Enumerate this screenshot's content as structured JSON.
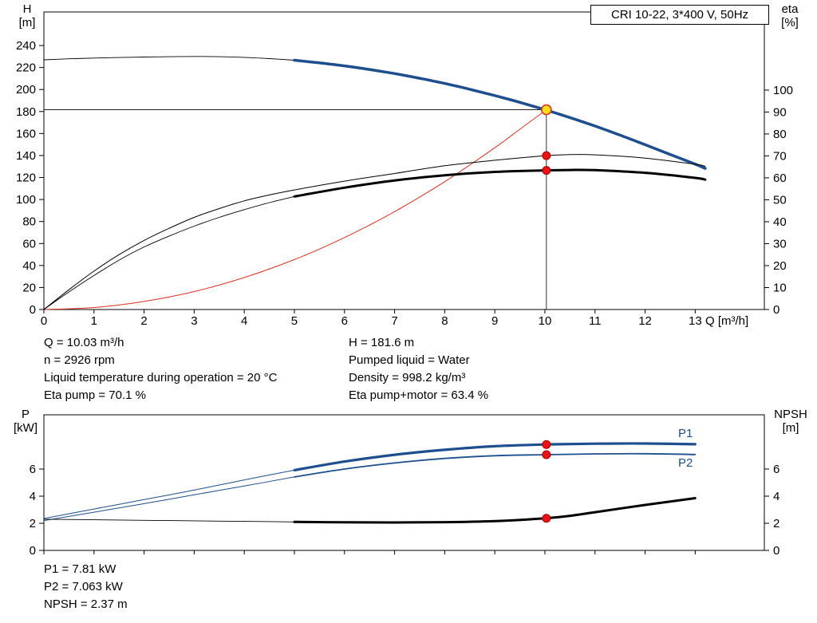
{
  "title_box": "CRI 10-22, 3*400 V, 50Hz",
  "axis_labels": {
    "top_left": [
      "H",
      "[m]"
    ],
    "top_right": [
      "eta",
      "[%]"
    ],
    "bottom_left": [
      "P",
      "[kW]"
    ],
    "bottom_right": [
      "NPSH",
      "[m]"
    ],
    "x": "Q [m³/h]"
  },
  "curve_labels": {
    "p1": "P1",
    "p2": "P2"
  },
  "info_top": {
    "left": [
      "Q = 10.03 m³/h",
      "n = 2926 rpm",
      "Liquid temperature during operation = 20 °C",
      "Eta pump = 70.1 %"
    ],
    "right": [
      "H = 181.6 m",
      "Pumped liquid = Water",
      "Density = 998.2 kg/m³",
      "Eta pump+motor = 63.4 %"
    ]
  },
  "info_bottom": [
    "P1 = 7.81 kW",
    "P2 = 7.063 kW",
    "NPSH = 2.37 m"
  ],
  "colors": {
    "curve_blue": "#1d4e8f",
    "curve_red": "#e0301e",
    "dot_red": "#ee1111",
    "dot_yellow": "#ffe11a",
    "black": "#000000"
  },
  "operating_point": {
    "q_m3h": 10.03,
    "h_m": 181.6,
    "n_rpm": 2926,
    "eta_pump_pct": 70.1,
    "eta_pump_motor_pct": 63.4,
    "p1_kw": 7.81,
    "p2_kw": 7.063,
    "npsh_m": 2.37,
    "liquid": "Water",
    "temperature_c": 20,
    "density_kg_m3": 998.2
  },
  "chart_data": [
    {
      "type": "line",
      "title": "CRI 10-22, 3*400 V, 50Hz",
      "xlabel": "Q [m³/h]",
      "xlim": [
        0,
        14.38
      ],
      "x_ticks": [
        0,
        1,
        2,
        3,
        4,
        5,
        6,
        7,
        8,
        9,
        10,
        11,
        12,
        13
      ],
      "show_x_labels": true,
      "left_axis": {
        "label": "H [m]",
        "lim": [
          0,
          270.5
        ],
        "ticks": [
          0,
          20,
          40,
          60,
          80,
          100,
          120,
          140,
          160,
          180,
          200,
          220,
          240
        ]
      },
      "right_axis": {
        "label": "eta [%]",
        "lim": [
          0,
          135.6
        ],
        "ticks": [
          0,
          10,
          20,
          30,
          40,
          50,
          60,
          70,
          80,
          90,
          100
        ]
      },
      "crosshair": {
        "q": 10.03,
        "h": 181.6
      },
      "series": [
        {
          "name": "pump-curve-low-range",
          "axis": "left",
          "color": "#000000",
          "width": 0.9,
          "points": [
            [
              0,
              227
            ],
            [
              0.5,
              227.9
            ],
            [
              1,
              228.6
            ],
            [
              1.5,
              229.1
            ],
            [
              2,
              229.5
            ],
            [
              2.5,
              229.8
            ],
            [
              3,
              230
            ],
            [
              3.5,
              229.8
            ],
            [
              4,
              229.2
            ],
            [
              4.5,
              228.1
            ],
            [
              5,
              226.6
            ]
          ]
        },
        {
          "name": "pump-curve-main",
          "axis": "left",
          "color": "#1d4e8f",
          "width": 3.5,
          "points": [
            [
              5,
              226.6
            ],
            [
              5.5,
              224.2
            ],
            [
              6,
              221.5
            ],
            [
              6.5,
              218.2
            ],
            [
              7,
              214.5
            ],
            [
              7.5,
              210.2
            ],
            [
              8,
              205.5
            ],
            [
              8.5,
              200.2
            ],
            [
              9,
              194.5
            ],
            [
              9.5,
              188.3
            ],
            [
              10,
              181.7
            ],
            [
              10.5,
              174.5
            ],
            [
              11,
              166.8
            ],
            [
              11.5,
              158.5
            ],
            [
              12,
              149.8
            ],
            [
              12.5,
              141
            ],
            [
              13,
              132.2
            ],
            [
              13.2,
              128.3
            ]
          ]
        },
        {
          "name": "system-curve",
          "axis": "left",
          "color": "#e0301e",
          "width": 1,
          "points": [
            [
              0,
              0
            ],
            [
              1,
              1.8
            ],
            [
              2,
              7.3
            ],
            [
              3,
              16.3
            ],
            [
              4,
              29.1
            ],
            [
              5,
              45.4
            ],
            [
              6,
              65.4
            ],
            [
              7,
              89
            ],
            [
              8,
              116.2
            ],
            [
              9,
              147.1
            ],
            [
              9.5,
              163.9
            ],
            [
              10.03,
              181.6
            ]
          ]
        },
        {
          "name": "eta-pump-curve",
          "axis": "right",
          "color": "#000000",
          "width": 1,
          "points": [
            [
              0,
              0
            ],
            [
              0.5,
              9
            ],
            [
              1,
              17.5
            ],
            [
              1.5,
              25
            ],
            [
              2,
              31.5
            ],
            [
              2.5,
              37
            ],
            [
              3,
              42
            ],
            [
              3.5,
              46
            ],
            [
              4,
              49.5
            ],
            [
              4.5,
              52.2
            ],
            [
              5,
              54.5
            ],
            [
              6,
              58.5
            ],
            [
              7,
              62
            ],
            [
              8,
              65.5
            ],
            [
              9,
              68
            ],
            [
              10,
              70.1
            ],
            [
              10.5,
              70.6
            ],
            [
              11,
              70.5
            ],
            [
              12,
              69
            ],
            [
              13,
              66.2
            ],
            [
              13.2,
              65.3
            ]
          ]
        },
        {
          "name": "eta-pump-motor-low-range",
          "axis": "right",
          "color": "#000000",
          "width": 0.9,
          "points": [
            [
              0,
              0
            ],
            [
              0.5,
              8
            ],
            [
              1,
              15.5
            ],
            [
              1.5,
              22.5
            ],
            [
              2,
              28.5
            ],
            [
              2.5,
              33.5
            ],
            [
              3,
              38
            ],
            [
              3.5,
              42
            ],
            [
              4,
              45.5
            ],
            [
              4.5,
              48.7
            ],
            [
              5,
              51.5
            ]
          ]
        },
        {
          "name": "eta-pump-motor-curve",
          "axis": "right",
          "color": "#000000",
          "width": 3,
          "points": [
            [
              5,
              51.5
            ],
            [
              6,
              55.5
            ],
            [
              7,
              58.8
            ],
            [
              8,
              61.2
            ],
            [
              9,
              62.7
            ],
            [
              10,
              63.4
            ],
            [
              10.5,
              63.6
            ],
            [
              11,
              63.5
            ],
            [
              12,
              62.3
            ],
            [
              13,
              60
            ],
            [
              13.2,
              59.2
            ]
          ]
        }
      ],
      "points": [
        {
          "name": "duty-point",
          "axis": "left",
          "x": 10.03,
          "y": 181.6,
          "r": 6,
          "fill": "#ffe11a",
          "stroke": "#e0301e",
          "stroke_width": 1.6,
          "interactable": true
        },
        {
          "name": "eta-pump-point",
          "axis": "right",
          "x": 10.03,
          "y": 70.1,
          "r": 5,
          "fill": "#ee1111",
          "stroke": "#aa0000",
          "stroke_width": 1
        },
        {
          "name": "eta-pump-motor-point",
          "axis": "right",
          "x": 10.03,
          "y": 63.4,
          "r": 5,
          "fill": "#ee1111",
          "stroke": "#aa0000",
          "stroke_width": 1
        }
      ]
    },
    {
      "type": "line",
      "xlim": [
        0,
        14.38
      ],
      "x_ticks": [
        0,
        1,
        2,
        3,
        4,
        5,
        6,
        7,
        8,
        9,
        10,
        11,
        12,
        13
      ],
      "show_x_labels": false,
      "left_axis": {
        "label": "P [kW]",
        "lim": [
          0,
          10
        ],
        "ticks": [
          0,
          2,
          4,
          6
        ]
      },
      "right_axis": {
        "label": "NPSH [m]",
        "lim": [
          0,
          10
        ],
        "ticks": [
          0,
          2,
          4,
          6
        ]
      },
      "series": [
        {
          "name": "p2-curve-low-range",
          "axis": "left",
          "color": "#1d4e8f",
          "width": 1,
          "points": [
            [
              0,
              2.2
            ],
            [
              1,
              2.82
            ],
            [
              2,
              3.45
            ],
            [
              3,
              4.1
            ],
            [
              4,
              4.75
            ],
            [
              5,
              5.42
            ]
          ]
        },
        {
          "name": "p2-curve",
          "axis": "left",
          "color": "#1d4e8f",
          "width": 1.8,
          "points": [
            [
              5,
              5.42
            ],
            [
              6,
              6.0
            ],
            [
              7,
              6.45
            ],
            [
              8,
              6.78
            ],
            [
              9,
              6.98
            ],
            [
              10,
              7.06
            ],
            [
              11,
              7.12
            ],
            [
              12,
              7.13
            ],
            [
              13,
              7.07
            ]
          ]
        },
        {
          "name": "p1-curve-low-range",
          "axis": "left",
          "color": "#1d4e8f",
          "width": 1,
          "points": [
            [
              0,
              2.35
            ],
            [
              1,
              3.05
            ],
            [
              2,
              3.75
            ],
            [
              3,
              4.45
            ],
            [
              4,
              5.2
            ],
            [
              5,
              5.92
            ]
          ]
        },
        {
          "name": "p1-curve",
          "axis": "left",
          "color": "#1d4e8f",
          "width": 3.2,
          "points": [
            [
              5,
              5.92
            ],
            [
              6,
              6.55
            ],
            [
              7,
              7.05
            ],
            [
              8,
              7.42
            ],
            [
              9,
              7.68
            ],
            [
              10,
              7.81
            ],
            [
              11,
              7.87
            ],
            [
              12,
              7.88
            ],
            [
              13,
              7.83
            ]
          ]
        },
        {
          "name": "npsh-curve-low-range",
          "axis": "right",
          "color": "#000000",
          "width": 0.9,
          "points": [
            [
              0,
              2.3
            ],
            [
              1,
              2.26
            ],
            [
              2,
              2.22
            ],
            [
              3,
              2.18
            ],
            [
              4,
              2.14
            ],
            [
              5,
              2.1
            ]
          ]
        },
        {
          "name": "npsh-curve",
          "axis": "right",
          "color": "#000000",
          "width": 3,
          "points": [
            [
              5,
              2.1
            ],
            [
              6,
              2.07
            ],
            [
              7,
              2.06
            ],
            [
              8,
              2.08
            ],
            [
              9,
              2.16
            ],
            [
              10,
              2.37
            ],
            [
              10.5,
              2.55
            ],
            [
              11,
              2.82
            ],
            [
              12,
              3.35
            ],
            [
              13,
              3.85
            ]
          ]
        }
      ],
      "points": [
        {
          "name": "p1-point",
          "axis": "left",
          "x": 10.03,
          "y": 7.81,
          "r": 5,
          "fill": "#ee1111",
          "stroke": "#aa0000",
          "stroke_width": 1
        },
        {
          "name": "p2-point",
          "axis": "left",
          "x": 10.03,
          "y": 7.06,
          "r": 5,
          "fill": "#ee1111",
          "stroke": "#aa0000",
          "stroke_width": 1
        },
        {
          "name": "npsh-point",
          "axis": "right",
          "x": 10.03,
          "y": 2.37,
          "r": 5,
          "fill": "#ee1111",
          "stroke": "#aa0000",
          "stroke_width": 1
        }
      ]
    }
  ]
}
